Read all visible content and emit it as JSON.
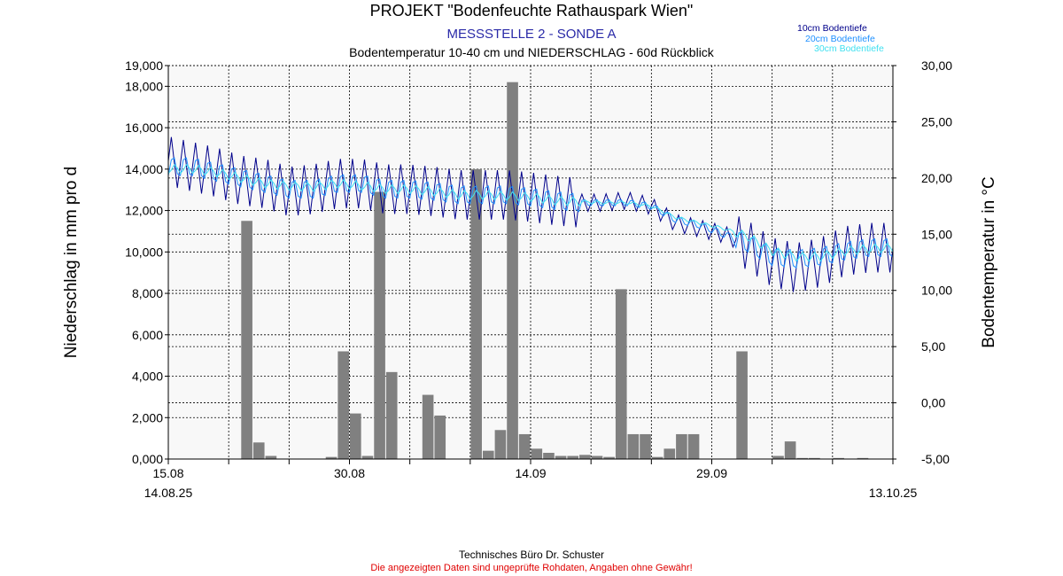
{
  "header": {
    "title": "PROJEKT \"Bodenfeuchte Rathauspark Wien\"",
    "subtitle": "MESSSTELLE 2 - SONDE A",
    "description": "Bodentemperatur 10-40 cm und NIEDERSCHLAG - 60d Rückblick"
  },
  "footer": {
    "company": "Technisches Büro Dr. Schuster",
    "disclaimer": "Die angezeigten Daten sind ungeprüfte Rohdaten, Angaben ohne Gewähr!"
  },
  "colors": {
    "bar": "#808080",
    "series_10cm": "#00008b",
    "series_20cm": "#1e90ff",
    "series_30cm": "#40e0f0",
    "plot_bg": "#f8f8f8",
    "subtitle": "#2a2aa8",
    "disclaimer": "#e00000"
  },
  "chart_data": {
    "type": "bar+line",
    "ylabel_left": "Niederschlag in mm pro d",
    "ylabel_right": "Bodentemperatur in °C",
    "ylim_left": [
      0,
      19000
    ],
    "ylim_right": [
      -5,
      30
    ],
    "x_range_days": [
      0,
      60
    ],
    "left_ticks": [
      "0,000",
      "2,000",
      "4,000",
      "6,000",
      "8,000",
      "10,000",
      "12,000",
      "14,000",
      "16,000",
      "18,000",
      "19,000"
    ],
    "left_tick_values": [
      0,
      2000,
      4000,
      6000,
      8000,
      10000,
      12000,
      14000,
      16000,
      18000,
      19000
    ],
    "right_ticks": [
      "-5,00",
      "0,00",
      "5,00",
      "10,00",
      "15,00",
      "20,00",
      "25,00",
      "30,00"
    ],
    "right_tick_values": [
      -5,
      0,
      5,
      10,
      15,
      20,
      25,
      30
    ],
    "x_ticks": [
      {
        "day": 0,
        "label": "15.08",
        "label2": "14.08.25"
      },
      {
        "day": 15,
        "label": "30.08",
        "label2": ""
      },
      {
        "day": 30,
        "label": "14.09",
        "label2": ""
      },
      {
        "day": 45,
        "label": "29.09",
        "label2": ""
      },
      {
        "day": 60,
        "label": "",
        "label2": "13.10.25"
      }
    ],
    "grid": true,
    "legend_position": "top-right",
    "precipitation": {
      "name": "Niederschlag",
      "day": [
        6,
        7,
        8,
        13,
        14,
        15,
        16,
        17,
        18,
        21,
        22,
        25,
        26,
        27,
        28,
        29,
        30,
        31,
        32,
        33,
        34,
        35,
        36,
        37,
        38,
        39,
        40,
        41,
        42,
        43,
        47,
        50,
        51,
        52,
        53,
        55,
        57
      ],
      "value": [
        11500,
        800,
        150,
        100,
        5200,
        2200,
        150,
        12900,
        4200,
        3100,
        2100,
        14000,
        400,
        1400,
        18200,
        1200,
        500,
        300,
        150,
        150,
        200,
        150,
        100,
        8200,
        1200,
        1200,
        100,
        500,
        1200,
        1200,
        5200,
        150,
        850,
        50,
        50,
        50,
        50
      ]
    },
    "temperature": {
      "x_day": [
        0,
        2,
        4,
        6,
        8,
        10,
        12,
        14,
        16,
        18,
        20,
        22,
        24,
        26,
        28,
        30,
        32,
        34,
        36,
        38,
        40,
        42,
        44,
        46,
        48,
        50,
        52,
        54,
        56,
        58,
        60
      ],
      "series": [
        {
          "name": "10cm Bodentiefe",
          "values": [
            21.5,
            21.0,
            20.5,
            19.8,
            19.5,
            18.8,
            19.0,
            19.5,
            19.5,
            19.0,
            19.0,
            18.8,
            18.5,
            18.5,
            18.5,
            18.3,
            18.0,
            17.8,
            17.8,
            18.0,
            17.5,
            16.0,
            15.5,
            15.0,
            14.0,
            12.5,
            12.0,
            12.5,
            13.5,
            13.8,
            13.8
          ]
        },
        {
          "name": "20cm Bodentiefe",
          "values": [
            21.0,
            21.0,
            20.5,
            20.0,
            19.5,
            19.0,
            19.0,
            19.5,
            19.5,
            19.0,
            19.0,
            18.8,
            18.5,
            18.5,
            18.5,
            18.3,
            18.0,
            17.8,
            17.8,
            17.8,
            17.5,
            16.3,
            15.8,
            15.0,
            14.2,
            13.0,
            12.8,
            13.0,
            13.5,
            13.8,
            13.8
          ]
        },
        {
          "name": "30cm Bodentiefe",
          "values": [
            20.8,
            20.8,
            20.5,
            20.0,
            19.5,
            19.3,
            19.2,
            19.5,
            19.3,
            19.0,
            19.0,
            18.8,
            18.5,
            18.5,
            18.4,
            18.3,
            18.0,
            17.9,
            17.8,
            17.8,
            17.5,
            16.5,
            16.0,
            15.5,
            14.8,
            13.5,
            13.0,
            13.0,
            13.5,
            13.7,
            13.8
          ]
        }
      ]
    }
  }
}
